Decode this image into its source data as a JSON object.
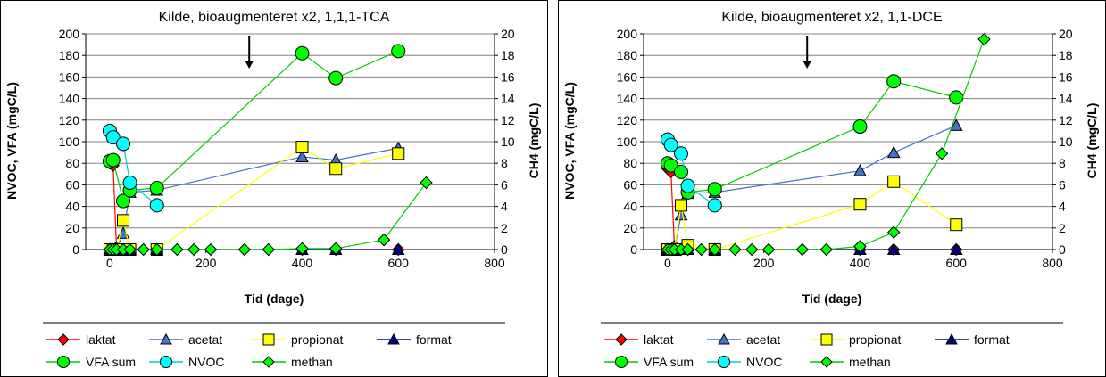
{
  "chart_data": [
    {
      "type": "line",
      "title": "Kilde, bioaugmenteret x2, 1,1,1-TCA",
      "xlabel": "Tid (dage)",
      "ylabel": "NVOC, VFA (mgC/L)",
      "y2label": "CH4 (mgC/L)",
      "xlim": [
        -50,
        800
      ],
      "xticks": [
        "0",
        "200",
        "400",
        "600",
        "800"
      ],
      "ylim": [
        0,
        200
      ],
      "yticks": [
        "0",
        "20",
        "40",
        "60",
        "80",
        "100",
        "120",
        "140",
        "160",
        "180",
        "200"
      ],
      "y2lim": [
        0,
        20
      ],
      "y2ticks": [
        "0",
        "2",
        "4",
        "6",
        "8",
        "10",
        "12",
        "14",
        "16",
        "18",
        "20"
      ],
      "grid": true,
      "legend_position": "bottom",
      "annotation_arrow_x": 290,
      "series": [
        {
          "name": "laktat",
          "axis": "left",
          "color": "#ff0000",
          "marker": "diamond",
          "marker_fill": "#ff0000",
          "x": [
            0,
            7,
            14,
            21,
            28,
            42,
            98,
            400,
            470,
            600
          ],
          "y": [
            80,
            78,
            2,
            0,
            0,
            0,
            0,
            0,
            0,
            0
          ]
        },
        {
          "name": "acetat",
          "axis": "left",
          "color": "#4472c4",
          "marker": "triangle",
          "marker_fill": "#4472c4",
          "x": [
            0,
            7,
            14,
            28,
            42,
            98,
            400,
            470,
            600
          ],
          "y": [
            0,
            0,
            0,
            15,
            53,
            55,
            86,
            83,
            94
          ]
        },
        {
          "name": "propionat",
          "axis": "left",
          "color": "#ffff00",
          "marker": "square",
          "marker_fill": "#ffff00",
          "x": [
            0,
            7,
            14,
            28,
            42,
            98,
            400,
            470,
            600
          ],
          "y": [
            0,
            0,
            0,
            27,
            0,
            0,
            95,
            75,
            89
          ]
        },
        {
          "name": "format",
          "axis": "left",
          "color": "#000080",
          "marker": "triangle",
          "marker_fill": "#000080",
          "x": [
            0,
            7,
            14,
            28,
            42,
            98,
            400,
            470,
            600
          ],
          "y": [
            0,
            0,
            0,
            0,
            0,
            0,
            0,
            0,
            0
          ]
        },
        {
          "name": "VFA sum",
          "axis": "left",
          "color": "#00cc00",
          "marker": "circle",
          "marker_fill": "#00ff00",
          "x": [
            0,
            7,
            28,
            42,
            98,
            400,
            470,
            600
          ],
          "y": [
            82,
            83,
            45,
            55,
            57,
            182,
            159,
            184
          ]
        },
        {
          "name": "NVOC",
          "axis": "left",
          "color": "#00cccc",
          "marker": "circle",
          "marker_fill": "#00ffff",
          "x": [
            0,
            7,
            28,
            42,
            98
          ],
          "y": [
            110,
            104,
            98,
            62,
            41
          ]
        },
        {
          "name": "methan",
          "axis": "right",
          "color": "#00cc00",
          "marker": "diamond",
          "marker_fill": "#00ff00",
          "x": [
            0,
            7,
            14,
            28,
            42,
            70,
            98,
            140,
            175,
            210,
            280,
            330,
            400,
            470,
            570,
            658
          ],
          "y": [
            0,
            0,
            0,
            0,
            0,
            0,
            0,
            0,
            0,
            0,
            0,
            0,
            0.1,
            0.1,
            0.9,
            6.2
          ]
        }
      ]
    },
    {
      "type": "line",
      "title": "Kilde, bioaugmenteret x2, 1,1-DCE",
      "xlabel": "Tid (dage)",
      "ylabel": "NVOC, VFA (mgC/L)",
      "y2label": "CH4 (mgC/L)",
      "xlim": [
        -50,
        800
      ],
      "xticks": [
        "0",
        "200",
        "400",
        "600",
        "800"
      ],
      "ylim": [
        0,
        200
      ],
      "yticks": [
        "0",
        "20",
        "40",
        "60",
        "80",
        "100",
        "120",
        "140",
        "160",
        "180",
        "200"
      ],
      "y2lim": [
        0,
        20
      ],
      "y2ticks": [
        "0",
        "2",
        "4",
        "6",
        "8",
        "10",
        "12",
        "14",
        "16",
        "18",
        "20"
      ],
      "grid": true,
      "legend_position": "bottom",
      "annotation_arrow_x": 290,
      "series": [
        {
          "name": "laktat",
          "axis": "left",
          "color": "#ff0000",
          "marker": "diamond",
          "marker_fill": "#ff0000",
          "x": [
            0,
            7,
            14,
            21,
            28,
            42,
            98,
            400,
            470,
            600
          ],
          "y": [
            75,
            72,
            3,
            0,
            0,
            0,
            0,
            0,
            0,
            0
          ]
        },
        {
          "name": "acetat",
          "axis": "left",
          "color": "#4472c4",
          "marker": "triangle",
          "marker_fill": "#4472c4",
          "x": [
            0,
            7,
            14,
            28,
            42,
            98,
            400,
            470,
            600
          ],
          "y": [
            0,
            0,
            0,
            32,
            52,
            53,
            73,
            90,
            115
          ]
        },
        {
          "name": "propionat",
          "axis": "left",
          "color": "#ffff00",
          "marker": "square",
          "marker_fill": "#ffff00",
          "x": [
            0,
            7,
            14,
            28,
            42,
            98,
            400,
            470,
            600
          ],
          "y": [
            0,
            0,
            0,
            41,
            4,
            0,
            42,
            63,
            23
          ]
        },
        {
          "name": "format",
          "axis": "left",
          "color": "#000080",
          "marker": "triangle",
          "marker_fill": "#000080",
          "x": [
            0,
            7,
            14,
            28,
            42,
            98,
            400,
            470,
            600
          ],
          "y": [
            0,
            0,
            0,
            0,
            0,
            0,
            0,
            0,
            0
          ]
        },
        {
          "name": "VFA sum",
          "axis": "left",
          "color": "#00cc00",
          "marker": "circle",
          "marker_fill": "#00ff00",
          "x": [
            0,
            7,
            28,
            42,
            98,
            400,
            470,
            600
          ],
          "y": [
            80,
            78,
            72,
            53,
            56,
            114,
            156,
            141
          ]
        },
        {
          "name": "NVOC",
          "axis": "left",
          "color": "#00cccc",
          "marker": "circle",
          "marker_fill": "#00ffff",
          "x": [
            0,
            7,
            28,
            42,
            98
          ],
          "y": [
            102,
            97,
            89,
            59,
            41
          ]
        },
        {
          "name": "methan",
          "axis": "right",
          "color": "#00cc00",
          "marker": "diamond",
          "marker_fill": "#00ff00",
          "x": [
            0,
            7,
            14,
            28,
            42,
            70,
            98,
            140,
            175,
            210,
            280,
            330,
            400,
            470,
            570,
            658
          ],
          "y": [
            0,
            0,
            0,
            0,
            0,
            0,
            0,
            0,
            0,
            0,
            0,
            0,
            0.3,
            1.6,
            8.9,
            19.5
          ]
        }
      ]
    }
  ]
}
